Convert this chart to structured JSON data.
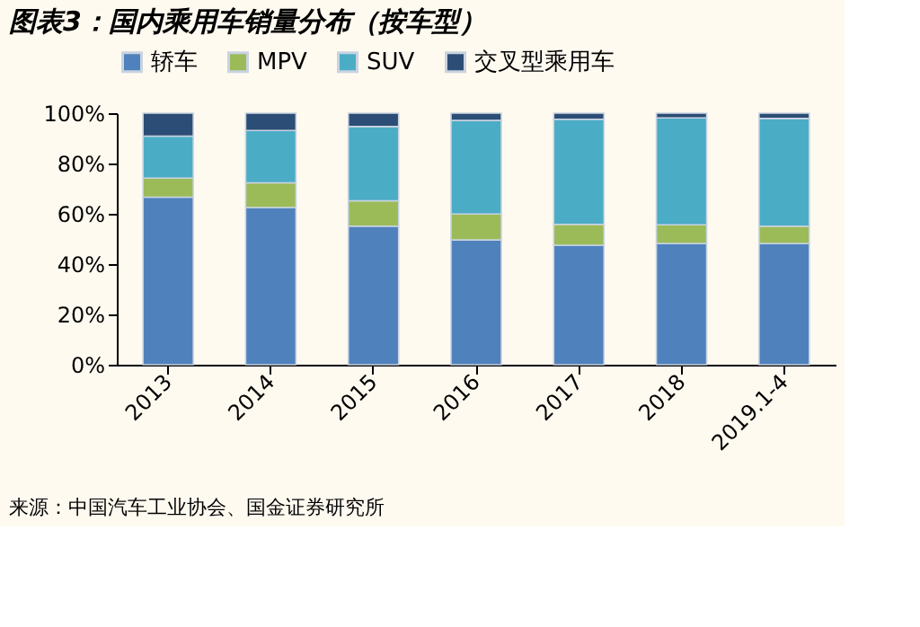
{
  "chart_data": {
    "type": "bar",
    "stacked": true,
    "title": "图表3：国内乘用车销量分布（按车型）",
    "categories": [
      "2013",
      "2014",
      "2015",
      "2016",
      "2017",
      "2018",
      "2019.1-4"
    ],
    "series": [
      {
        "name": "轿车",
        "color": "#4f81bd",
        "values": [
          66.6,
          62.5,
          55.1,
          49.6,
          47.5,
          48.2,
          48.2
        ]
      },
      {
        "name": "MPV",
        "color": "#9bbb59",
        "values": [
          7.6,
          9.8,
          10.1,
          10.3,
          8.3,
          7.4,
          6.9
        ]
      },
      {
        "name": "SUV",
        "color": "#4bacc6",
        "values": [
          16.7,
          20.8,
          29.5,
          37.2,
          41.8,
          42.5,
          42.8
        ]
      },
      {
        "name": "交叉型乘用车",
        "color": "#2c4d75",
        "values": [
          9.1,
          6.9,
          5.3,
          2.9,
          2.4,
          1.9,
          2.1
        ]
      }
    ],
    "ylim": [
      0,
      100
    ],
    "yticks": [
      {
        "value": 0,
        "label": "0%"
      },
      {
        "value": 20,
        "label": "20%"
      },
      {
        "value": 40,
        "label": "40%"
      },
      {
        "value": 60,
        "label": "60%"
      },
      {
        "value": 80,
        "label": "80%"
      },
      {
        "value": 100,
        "label": "100%"
      }
    ],
    "legend": "top",
    "grid": false,
    "annotations": [
      "来源：中国汽车工业协会、国金证券研究所"
    ]
  }
}
